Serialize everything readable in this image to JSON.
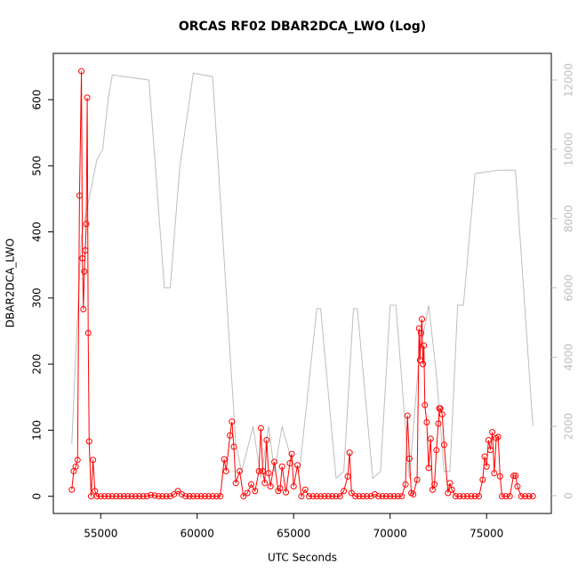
{
  "chart_data": {
    "type": "line",
    "title": "ORCAS RF02 DBAR2DCA_LWO (Log)",
    "xlabel": "UTC Seconds",
    "ylabel": "DBAR2DCA_LWO",
    "xlim": [
      52544,
      78356
    ],
    "ylim": [
      -26,
      670
    ],
    "y2lim": [
      -514,
      12771
    ],
    "xticks": [
      55000,
      60000,
      65000,
      70000,
      75000
    ],
    "yticks": [
      0,
      100,
      200,
      300,
      400,
      500,
      600
    ],
    "y2ticks": [
      0,
      2000,
      4000,
      6000,
      8000,
      10000,
      12000
    ],
    "series": [
      {
        "color": "#ff0000",
        "markers": true,
        "x": [
          53500,
          53600,
          53700,
          53800,
          53900,
          54000,
          54050,
          54100,
          54150,
          54200,
          54250,
          54300,
          54350,
          54400,
          54500,
          54600,
          54700,
          54800,
          55000,
          55200,
          55400,
          55600,
          55800,
          56000,
          56200,
          56400,
          56600,
          56800,
          57000,
          57200,
          57400,
          57600,
          57800,
          58000,
          58200,
          58400,
          58600,
          58800,
          59000,
          59200,
          59400,
          59600,
          59800,
          60000,
          60200,
          60400,
          60600,
          60800,
          61000,
          61200,
          61400,
          61500,
          61700,
          61800,
          61900,
          62000,
          62200,
          62400,
          62600,
          62800,
          63000,
          63200,
          63300,
          63400,
          63500,
          63600,
          63700,
          63800,
          64000,
          64200,
          64300,
          64400,
          64600,
          64800,
          64900,
          65000,
          65200,
          65400,
          65600,
          65800,
          66000,
          66200,
          66400,
          66600,
          66800,
          67000,
          67200,
          67400,
          67600,
          67800,
          67900,
          68000,
          68200,
          68400,
          68600,
          68800,
          69000,
          69200,
          69400,
          69600,
          69800,
          70000,
          70200,
          70400,
          70600,
          70800,
          70900,
          71000,
          71100,
          71200,
          71400,
          71500,
          71550,
          71600,
          71650,
          71700,
          71750,
          71800,
          71900,
          72000,
          72100,
          72200,
          72300,
          72400,
          72500,
          72550,
          72600,
          72700,
          72800,
          73000,
          73100,
          73200,
          73400,
          73600,
          73800,
          74000,
          74200,
          74400,
          74600,
          74800,
          74900,
          75000,
          75100,
          75200,
          75300,
          75400,
          75500,
          75600,
          75700,
          75800,
          76000,
          76200,
          76400,
          76500,
          76600,
          76800,
          77000,
          77200,
          77400
        ],
        "values": [
          10,
          38,
          45,
          55,
          455,
          643,
          360,
          283,
          340,
          372,
          412,
          603,
          247,
          83,
          0,
          55,
          8,
          0,
          0,
          0,
          0,
          0,
          0,
          0,
          0,
          0,
          0,
          0,
          0,
          0,
          0,
          2,
          1,
          0,
          0,
          0,
          0,
          3,
          8,
          3,
          0,
          0,
          0,
          0,
          0,
          0,
          0,
          0,
          0,
          0,
          56,
          38,
          92,
          113,
          75,
          20,
          38,
          0,
          5,
          18,
          8,
          38,
          103,
          38,
          20,
          85,
          35,
          15,
          52,
          8,
          12,
          45,
          6,
          50,
          64,
          15,
          47,
          0,
          10,
          0,
          0,
          0,
          0,
          0,
          0,
          0,
          0,
          0,
          8,
          30,
          66,
          5,
          0,
          0,
          0,
          0,
          0,
          3,
          0,
          0,
          0,
          0,
          0,
          0,
          0,
          18,
          122,
          57,
          5,
          3,
          25,
          254,
          206,
          247,
          268,
          200,
          228,
          138,
          112,
          43,
          87,
          10,
          18,
          70,
          110,
          133,
          133,
          124,
          78,
          5,
          20,
          10,
          0,
          0,
          0,
          0,
          0,
          0,
          0,
          25,
          60,
          45,
          85,
          70,
          97,
          35,
          88,
          90,
          30,
          0,
          0,
          0,
          31,
          31,
          15,
          0,
          0,
          0,
          0
        ]
      },
      {
        "color": "#bebebe",
        "axis": "y2",
        "markers": false,
        "x": [
          53500,
          53700,
          54000,
          54800,
          55100,
          55400,
          55600,
          57500,
          58300,
          58600,
          59100,
          59800,
          60800,
          62000,
          62300,
          62900,
          63300,
          63700,
          64000,
          64400,
          64900,
          65300,
          66200,
          66400,
          67200,
          67600,
          68100,
          68300,
          69100,
          69500,
          70000,
          70300,
          71000,
          71500,
          72000,
          72400,
          72800,
          73100,
          73500,
          73800,
          74400,
          75600,
          76500,
          77400
        ],
        "values": [
          1500,
          4000,
          7500,
          9700,
          10000,
          11500,
          12150,
          12000,
          6000,
          6000,
          9500,
          12200,
          12100,
          1500,
          700,
          2000,
          500,
          2000,
          700,
          2000,
          1000,
          700,
          5400,
          5400,
          500,
          700,
          5400,
          5400,
          500,
          700,
          5500,
          5500,
          500,
          4000,
          5500,
          3500,
          700,
          700,
          5500,
          5500,
          9300,
          9400,
          9400,
          2000
        ]
      }
    ]
  }
}
